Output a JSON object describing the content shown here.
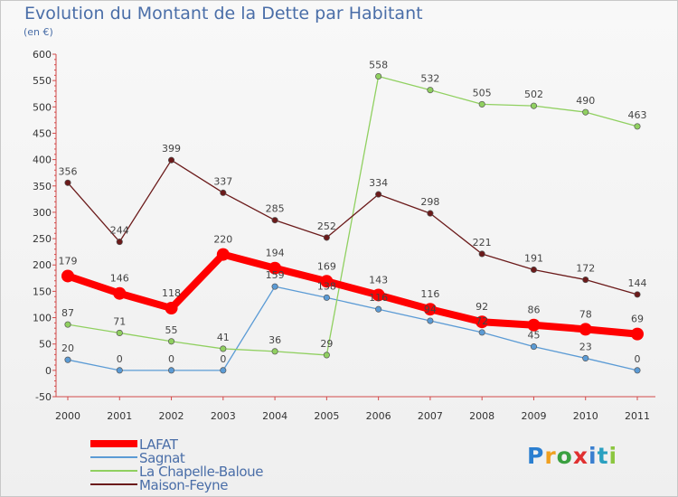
{
  "header": {
    "title": "Evolution du Montant de la Dette par Habitant",
    "unit": "(en €)"
  },
  "brand": {
    "name": "Proxiti",
    "colors": [
      "#2b7fd0",
      "#f0a020",
      "#3aa040",
      "#e03030",
      "#3a7fd0",
      "#2aa0c0",
      "#8cc63f"
    ]
  },
  "chart_data": {
    "type": "line",
    "title": "Evolution du Montant de la Dette par Habitant",
    "ylabel": "(en €)",
    "xlabel": "",
    "x": [
      "2000",
      "2001",
      "2002",
      "2003",
      "2004",
      "2005",
      "2006",
      "2007",
      "2008",
      "2009",
      "2010",
      "2011"
    ],
    "ylim": [
      -50,
      600
    ],
    "yticks": [
      "-50",
      "0",
      "50",
      "100",
      "150",
      "200",
      "250",
      "300",
      "350",
      "400",
      "450",
      "500",
      "550",
      "600"
    ],
    "grid": "none",
    "legend_position": "bottom-left",
    "series": [
      {
        "name": "LAFAT",
        "color": "#ff0000",
        "emphasis": true,
        "values": [
          179,
          146,
          118,
          220,
          194,
          169,
          143,
          116,
          92,
          86,
          78,
          69
        ]
      },
      {
        "name": "Sagnat",
        "color": "#5b9bd5",
        "values": [
          20,
          0,
          0,
          0,
          159,
          138,
          116,
          94,
          72,
          45,
          23,
          0
        ]
      },
      {
        "name": "La Chapelle-Baloue",
        "color": "#90d060",
        "values": [
          87,
          71,
          55,
          41,
          36,
          29,
          558,
          532,
          505,
          502,
          490,
          463
        ]
      },
      {
        "name": "Maison-Feyne",
        "color": "#6b1a1a",
        "values": [
          356,
          244,
          399,
          337,
          285,
          252,
          334,
          298,
          221,
          191,
          172,
          144
        ]
      }
    ]
  }
}
